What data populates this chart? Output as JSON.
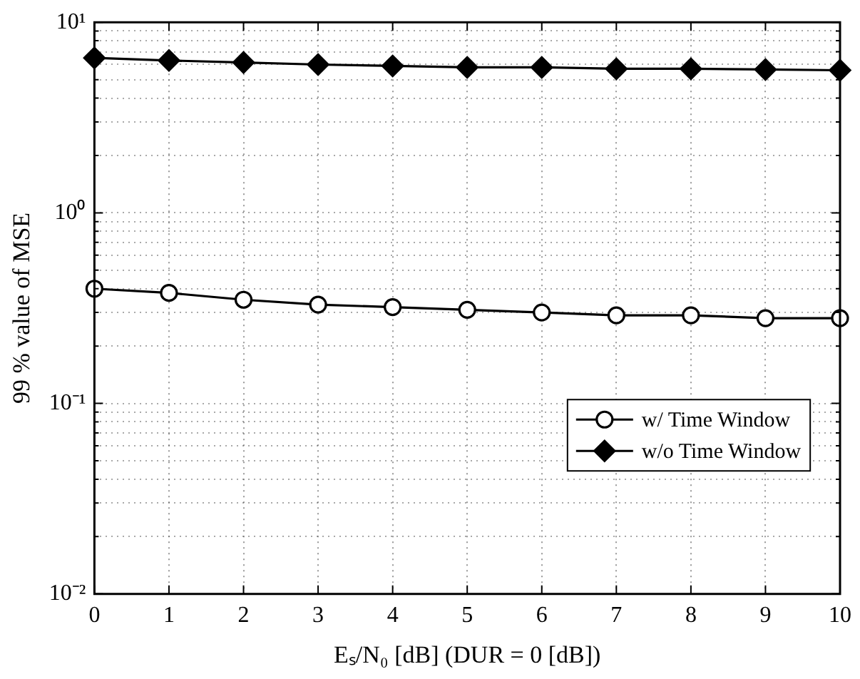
{
  "chart_data": {
    "type": "line",
    "xlabel": "Eₛ/N₀ [dB] (DUR = 0 [dB])",
    "ylabel": "99 % value of MSE",
    "x": [
      0,
      1,
      2,
      3,
      4,
      5,
      6,
      7,
      8,
      9,
      10
    ],
    "series": [
      {
        "name": "w/ Time Window",
        "color": "#000000",
        "marker": "circle",
        "values": [
          0.4,
          0.38,
          0.35,
          0.33,
          0.32,
          0.31,
          0.3,
          0.29,
          0.29,
          0.28,
          0.28
        ]
      },
      {
        "name": "w/o Time Window",
        "color": "#000000",
        "marker": "diamond",
        "values": [
          6.5,
          6.3,
          6.15,
          6.0,
          5.9,
          5.8,
          5.8,
          5.7,
          5.7,
          5.65,
          5.6
        ]
      }
    ],
    "log": "y",
    "xlim": [
      0,
      10
    ],
    "xticks": [
      0,
      1,
      2,
      3,
      4,
      5,
      6,
      7,
      8,
      9,
      10
    ],
    "ylim": [
      0.01,
      10
    ],
    "yticks": [
      {
        "value": 0.01,
        "label": "10⁻²"
      },
      {
        "value": 0.02,
        "label": null
      },
      {
        "value": 0.03,
        "label": null
      },
      {
        "value": 0.04,
        "label": null
      },
      {
        "value": 0.05,
        "label": null
      },
      {
        "value": 0.06,
        "label": null
      },
      {
        "value": 0.07,
        "label": null
      },
      {
        "value": 0.08,
        "label": null
      },
      {
        "value": 0.09,
        "label": null
      },
      {
        "value": 0.1,
        "label": "10⁻¹"
      },
      {
        "value": 0.2,
        "label": null
      },
      {
        "value": 0.3,
        "label": null
      },
      {
        "value": 0.4,
        "label": null
      },
      {
        "value": 0.5,
        "label": null
      },
      {
        "value": 0.6,
        "label": null
      },
      {
        "value": 0.7,
        "label": null
      },
      {
        "value": 0.8,
        "label": null
      },
      {
        "value": 0.9,
        "label": null
      },
      {
        "value": 1,
        "label": "10⁰"
      },
      {
        "value": 2,
        "label": null
      },
      {
        "value": 3,
        "label": null
      },
      {
        "value": 4,
        "label": null
      },
      {
        "value": 5,
        "label": null
      },
      {
        "value": 6,
        "label": null
      },
      {
        "value": 7,
        "label": null
      },
      {
        "value": 8,
        "label": null
      },
      {
        "value": 9,
        "label": null
      },
      {
        "value": 10,
        "label": "10¹"
      }
    ],
    "grid": true,
    "legend": "right",
    "line_style": "solid"
  }
}
